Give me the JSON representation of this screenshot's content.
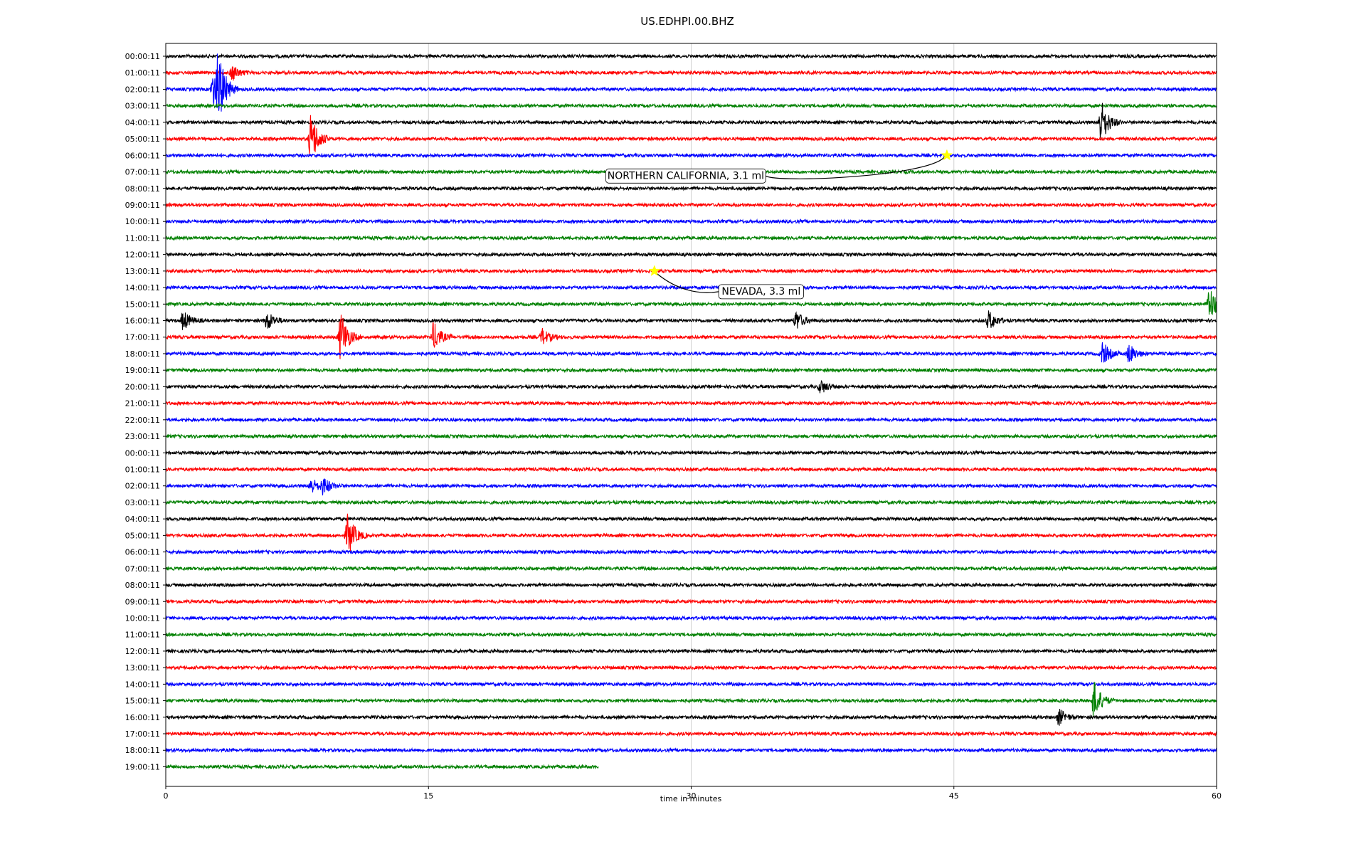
{
  "chart_data": {
    "type": "line",
    "title": "US.EDHPI.00.BHZ",
    "xlabel": "time in minutes",
    "ylabel": "",
    "xlim": [
      0,
      60
    ],
    "x_ticks": [
      "0",
      "15",
      "30",
      "45",
      "60"
    ],
    "grid": "vertical",
    "trace_colors": [
      "#000000",
      "#ff0000",
      "#0000ff",
      "#008000"
    ],
    "rows": [
      {
        "label": "00:00:11",
        "color": "#000000",
        "end": 60
      },
      {
        "label": "01:00:11",
        "color": "#ff0000",
        "end": 60
      },
      {
        "label": "02:00:11",
        "color": "#0000ff",
        "end": 60
      },
      {
        "label": "03:00:11",
        "color": "#008000",
        "end": 60
      },
      {
        "label": "04:00:11",
        "color": "#000000",
        "end": 60
      },
      {
        "label": "05:00:11",
        "color": "#ff0000",
        "end": 60
      },
      {
        "label": "06:00:11",
        "color": "#0000ff",
        "end": 60
      },
      {
        "label": "07:00:11",
        "color": "#008000",
        "end": 60
      },
      {
        "label": "08:00:11",
        "color": "#000000",
        "end": 60
      },
      {
        "label": "09:00:11",
        "color": "#ff0000",
        "end": 60
      },
      {
        "label": "10:00:11",
        "color": "#0000ff",
        "end": 60
      },
      {
        "label": "11:00:11",
        "color": "#008000",
        "end": 60
      },
      {
        "label": "12:00:11",
        "color": "#000000",
        "end": 60
      },
      {
        "label": "13:00:11",
        "color": "#ff0000",
        "end": 60
      },
      {
        "label": "14:00:11",
        "color": "#0000ff",
        "end": 60
      },
      {
        "label": "15:00:11",
        "color": "#008000",
        "end": 60
      },
      {
        "label": "16:00:11",
        "color": "#000000",
        "end": 60
      },
      {
        "label": "17:00:11",
        "color": "#ff0000",
        "end": 60
      },
      {
        "label": "18:00:11",
        "color": "#0000ff",
        "end": 60
      },
      {
        "label": "19:00:11",
        "color": "#008000",
        "end": 60
      },
      {
        "label": "20:00:11",
        "color": "#000000",
        "end": 60
      },
      {
        "label": "21:00:11",
        "color": "#ff0000",
        "end": 60
      },
      {
        "label": "22:00:11",
        "color": "#0000ff",
        "end": 60
      },
      {
        "label": "23:00:11",
        "color": "#008000",
        "end": 60
      },
      {
        "label": "00:00:11",
        "color": "#000000",
        "end": 60
      },
      {
        "label": "01:00:11",
        "color": "#ff0000",
        "end": 60
      },
      {
        "label": "02:00:11",
        "color": "#0000ff",
        "end": 60
      },
      {
        "label": "03:00:11",
        "color": "#008000",
        "end": 60
      },
      {
        "label": "04:00:11",
        "color": "#000000",
        "end": 60
      },
      {
        "label": "05:00:11",
        "color": "#ff0000",
        "end": 60
      },
      {
        "label": "06:00:11",
        "color": "#0000ff",
        "end": 60
      },
      {
        "label": "07:00:11",
        "color": "#008000",
        "end": 60
      },
      {
        "label": "08:00:11",
        "color": "#000000",
        "end": 60
      },
      {
        "label": "09:00:11",
        "color": "#ff0000",
        "end": 60
      },
      {
        "label": "10:00:11",
        "color": "#0000ff",
        "end": 60
      },
      {
        "label": "11:00:11",
        "color": "#008000",
        "end": 60
      },
      {
        "label": "12:00:11",
        "color": "#000000",
        "end": 60
      },
      {
        "label": "13:00:11",
        "color": "#ff0000",
        "end": 60
      },
      {
        "label": "14:00:11",
        "color": "#0000ff",
        "end": 60
      },
      {
        "label": "15:00:11",
        "color": "#008000",
        "end": 60
      },
      {
        "label": "16:00:11",
        "color": "#000000",
        "end": 60
      },
      {
        "label": "17:00:11",
        "color": "#ff0000",
        "end": 60
      },
      {
        "label": "18:00:11",
        "color": "#0000ff",
        "end": 60
      },
      {
        "label": "19:00:11",
        "color": "#008000",
        "end": 24.7
      }
    ],
    "events": [
      {
        "row": 1,
        "t": 3.8,
        "amp": 0.5
      },
      {
        "row": 2,
        "t": 2.7,
        "amp": 1.0
      },
      {
        "row": 2,
        "t": 3.0,
        "amp": 2.0
      },
      {
        "row": 4,
        "t": 53.4,
        "amp": 1.4
      },
      {
        "row": 5,
        "t": 8.3,
        "amp": 1.6
      },
      {
        "row": 15,
        "t": 59.6,
        "amp": 1.1
      },
      {
        "row": 16,
        "t": 1.0,
        "amp": 0.6
      },
      {
        "row": 16,
        "t": 5.8,
        "amp": 0.6
      },
      {
        "row": 16,
        "t": 36.0,
        "amp": 0.6
      },
      {
        "row": 16,
        "t": 47.0,
        "amp": 0.6
      },
      {
        "row": 17,
        "t": 10.0,
        "amp": 1.6
      },
      {
        "row": 17,
        "t": 15.3,
        "amp": 0.9
      },
      {
        "row": 17,
        "t": 21.5,
        "amp": 0.5
      },
      {
        "row": 18,
        "t": 53.5,
        "amp": 0.7
      },
      {
        "row": 18,
        "t": 55.0,
        "amp": 0.6
      },
      {
        "row": 20,
        "t": 37.4,
        "amp": 0.4
      },
      {
        "row": 26,
        "t": 8.3,
        "amp": 0.5
      },
      {
        "row": 26,
        "t": 9.0,
        "amp": 0.5
      },
      {
        "row": 29,
        "t": 10.4,
        "amp": 1.3
      },
      {
        "row": 39,
        "t": 53.0,
        "amp": 1.2
      },
      {
        "row": 40,
        "t": 51.0,
        "amp": 0.5
      }
    ],
    "annotations": [
      {
        "text": "NORTHERN CALIFORNIA, 3.1 ml",
        "row": 6,
        "t": 44.6
      },
      {
        "text": "NEVADA, 3.3 ml",
        "row": 13,
        "t": 27.9
      }
    ]
  }
}
